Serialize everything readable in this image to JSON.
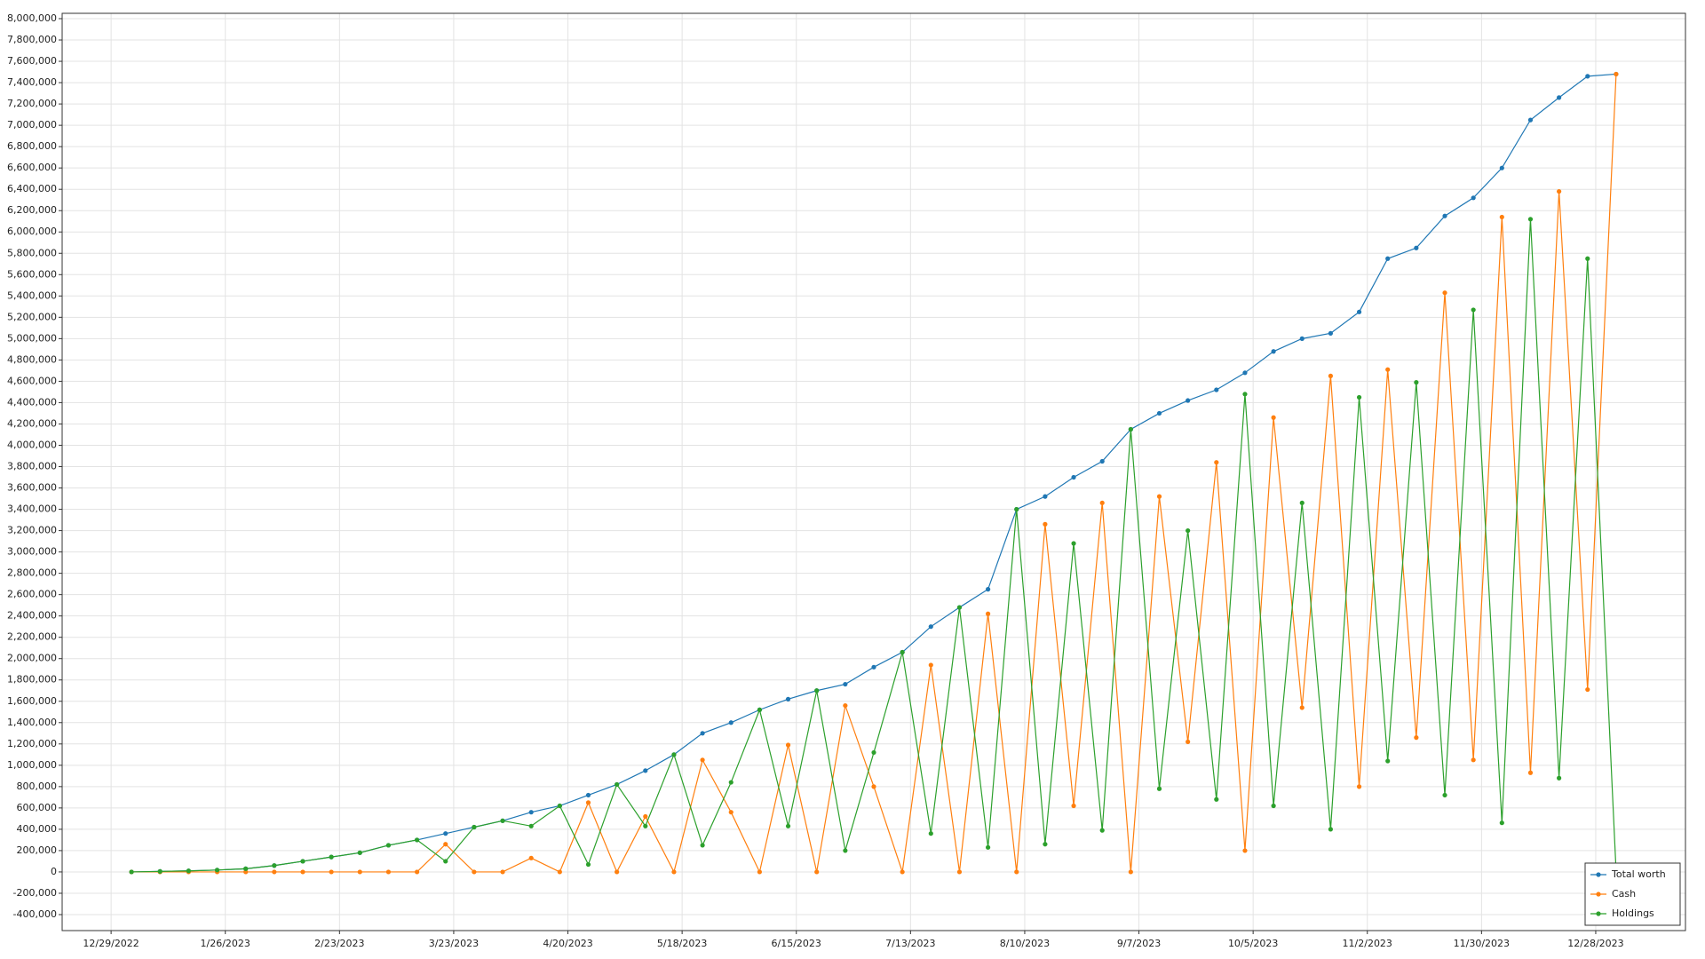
{
  "chart_data": {
    "type": "line",
    "x": [
      "2023-01-03",
      "2023-01-10",
      "2023-01-17",
      "2023-01-24",
      "2023-01-31",
      "2023-02-07",
      "2023-02-14",
      "2023-02-21",
      "2023-02-28",
      "2023-03-07",
      "2023-03-14",
      "2023-03-21",
      "2023-03-28",
      "2023-04-04",
      "2023-04-11",
      "2023-04-18",
      "2023-04-25",
      "2023-05-02",
      "2023-05-09",
      "2023-05-16",
      "2023-05-23",
      "2023-05-30",
      "2023-06-06",
      "2023-06-13",
      "2023-06-20",
      "2023-06-27",
      "2023-07-04",
      "2023-07-11",
      "2023-07-18",
      "2023-07-25",
      "2023-08-01",
      "2023-08-08",
      "2023-08-15",
      "2023-08-22",
      "2023-08-29",
      "2023-09-05",
      "2023-09-12",
      "2023-09-19",
      "2023-09-26",
      "2023-10-03",
      "2023-10-10",
      "2023-10-17",
      "2023-10-24",
      "2023-10-31",
      "2023-11-07",
      "2023-11-14",
      "2023-11-21",
      "2023-11-28",
      "2023-12-05",
      "2023-12-12",
      "2023-12-19",
      "2023-12-26",
      "2024-01-02"
    ],
    "series": [
      {
        "name": "Total worth",
        "color": "#1f77b4",
        "values": [
          0,
          5000,
          10000,
          18000,
          30000,
          60000,
          100000,
          140000,
          180000,
          250000,
          300000,
          360000,
          420000,
          480000,
          560000,
          620000,
          720000,
          820000,
          950000,
          1100000,
          1300000,
          1400000,
          1520000,
          1620000,
          1700000,
          1760000,
          1920000,
          2060000,
          2300000,
          2480000,
          2650000,
          3400000,
          3520000,
          3700000,
          3850000,
          4150000,
          4300000,
          4420000,
          4520000,
          4680000,
          4880000,
          5000000,
          5050000,
          5250000,
          5750000,
          5850000,
          6150000,
          6320000,
          6600000,
          7050000,
          7260000,
          7460000,
          7480000
        ]
      },
      {
        "name": "Cash",
        "color": "#ff7f0e",
        "values": [
          0,
          0,
          0,
          0,
          0,
          0,
          0,
          0,
          0,
          0,
          0,
          260000,
          0,
          0,
          130000,
          0,
          650000,
          0,
          520000,
          0,
          1050000,
          560000,
          0,
          1190000,
          0,
          1560000,
          800000,
          0,
          1940000,
          0,
          2420000,
          0,
          3260000,
          620000,
          3460000,
          0,
          3520000,
          1220000,
          3840000,
          200000,
          4260000,
          1540000,
          4650000,
          800000,
          4710000,
          1260000,
          5430000,
          1050000,
          6140000,
          930000,
          6380000,
          1710000,
          7480000
        ]
      },
      {
        "name": "Holdings",
        "color": "#2ca02c",
        "values": [
          0,
          5000,
          10000,
          18000,
          30000,
          60000,
          100000,
          140000,
          180000,
          250000,
          300000,
          100000,
          420000,
          480000,
          430000,
          620000,
          70000,
          820000,
          430000,
          1100000,
          250000,
          840000,
          1520000,
          430000,
          1700000,
          200000,
          1120000,
          2060000,
          360000,
          2480000,
          230000,
          3400000,
          260000,
          3080000,
          390000,
          4150000,
          780000,
          3200000,
          680000,
          4480000,
          620000,
          3460000,
          400000,
          4450000,
          1040000,
          4590000,
          720000,
          5270000,
          460000,
          6120000,
          880000,
          5750000,
          0
        ]
      }
    ],
    "xlim": [
      "2022-12-17",
      "2024-01-19"
    ],
    "xticks": [
      {
        "value": "2022-12-29",
        "label": "12/29/2022"
      },
      {
        "value": "2023-01-26",
        "label": "1/26/2023"
      },
      {
        "value": "2023-02-23",
        "label": "2/23/2023"
      },
      {
        "value": "2023-03-23",
        "label": "3/23/2023"
      },
      {
        "value": "2023-04-20",
        "label": "4/20/2023"
      },
      {
        "value": "2023-05-18",
        "label": "5/18/2023"
      },
      {
        "value": "2023-06-15",
        "label": "6/15/2023"
      },
      {
        "value": "2023-07-13",
        "label": "7/13/2023"
      },
      {
        "value": "2023-08-10",
        "label": "8/10/2023"
      },
      {
        "value": "2023-09-07",
        "label": "9/7/2023"
      },
      {
        "value": "2023-10-05",
        "label": "10/5/2023"
      },
      {
        "value": "2023-11-02",
        "label": "11/2/2023"
      },
      {
        "value": "2023-11-30",
        "label": "11/30/2023"
      },
      {
        "value": "2023-12-28",
        "label": "12/28/2023"
      }
    ],
    "ylim": [
      -400000,
      8000000
    ],
    "yticks": [
      {
        "value": -400000,
        "label": "-400,000"
      },
      {
        "value": -200000,
        "label": "-200,000"
      },
      0,
      {
        "value": 200000,
        "label": "200,000"
      },
      {
        "value": 400000,
        "label": "400,000"
      },
      {
        "value": 600000,
        "label": "600,000"
      },
      {
        "value": 800000,
        "label": "800,000"
      },
      {
        "value": 1000000,
        "label": "1,000,000"
      },
      {
        "value": 1200000,
        "label": "1,200,000"
      },
      {
        "value": 1400000,
        "label": "1,400,000"
      },
      {
        "value": 1600000,
        "label": "1,600,000"
      },
      {
        "value": 1800000,
        "label": "1,800,000"
      },
      {
        "value": 2000000,
        "label": "2,000,000"
      },
      {
        "value": 2200000,
        "label": "2,200,000"
      },
      {
        "value": 2400000,
        "label": "2,400,000"
      },
      {
        "value": 2600000,
        "label": "2,600,000"
      },
      {
        "value": 2800000,
        "label": "2,800,000"
      },
      {
        "value": 3000000,
        "label": "3,000,000"
      },
      {
        "value": 3200000,
        "label": "3,200,000"
      },
      {
        "value": 3400000,
        "label": "3,400,000"
      },
      {
        "value": 3600000,
        "label": "3,600,000"
      },
      {
        "value": 3800000,
        "label": "3,800,000"
      },
      {
        "value": 4000000,
        "label": "4,000,000"
      },
      {
        "value": 4200000,
        "label": "4,200,000"
      },
      {
        "value": 4400000,
        "label": "4,400,000"
      },
      {
        "value": 4600000,
        "label": "4,600,000"
      },
      {
        "value": 4800000,
        "label": "4,800,000"
      },
      {
        "value": 5000000,
        "label": "5,000,000"
      },
      {
        "value": 5200000,
        "label": "5,200,000"
      },
      {
        "value": 5400000,
        "label": "5,400,000"
      },
      {
        "value": 5600000,
        "label": "5,600,000"
      },
      {
        "value": 5800000,
        "label": "5,800,000"
      },
      {
        "value": 6000000,
        "label": "6,000,000"
      },
      {
        "value": 6200000,
        "label": "6,200,000"
      },
      {
        "value": 6400000,
        "label": "6,400,000"
      },
      {
        "value": 6600000,
        "label": "6,600,000"
      },
      {
        "value": 6800000,
        "label": "6,800,000"
      },
      {
        "value": 7000000,
        "label": "7,000,000"
      },
      {
        "value": 7200000,
        "label": "7,200,000"
      },
      {
        "value": 7400000,
        "label": "7,400,000"
      },
      {
        "value": 7600000,
        "label": "7,600,000"
      },
      {
        "value": 7800000,
        "label": "7,800,000"
      },
      {
        "value": 8000000,
        "label": "8,000,000"
      }
    ],
    "grid": true,
    "legend": "lower right"
  }
}
